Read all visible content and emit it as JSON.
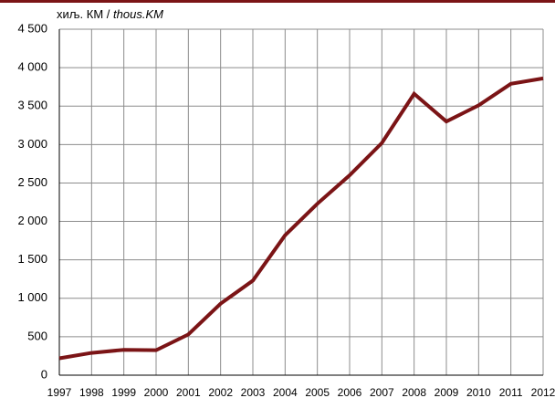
{
  "chart_data": {
    "type": "line",
    "ylabel": [
      "хиљ. КМ /",
      "thous.KM"
    ],
    "x": [
      1997,
      1998,
      1999,
      2000,
      2001,
      2002,
      2003,
      2004,
      2005,
      2006,
      2007,
      2008,
      2009,
      2010,
      2011,
      2012
    ],
    "xlim": [
      1997,
      2012
    ],
    "xticks": [
      1997,
      1998,
      1999,
      2000,
      2001,
      2002,
      2003,
      2004,
      2005,
      2006,
      2007,
      2008,
      2009,
      2010,
      2011,
      2012
    ],
    "series": [
      {
        "color": "#7b1416",
        "values": [
          220,
          290,
          330,
          325,
          530,
          930,
          1230,
          1820,
          2230,
          2600,
          3020,
          3660,
          3300,
          3510,
          3790,
          3860
        ]
      }
    ],
    "ylim": [
      0,
      4500
    ],
    "yticks": [
      0,
      500,
      {
        "value": 1000,
        "label": "1 000"
      },
      {
        "value": 1500,
        "label": "1 500"
      },
      {
        "value": 2000,
        "label": "2 000"
      },
      {
        "value": 2500,
        "label": "2 500"
      },
      {
        "value": 3000,
        "label": "3 000"
      },
      {
        "value": 3500,
        "label": "3 500"
      },
      {
        "value": 4000,
        "label": "4 000"
      },
      {
        "value": 4500,
        "label": "4 500"
      }
    ],
    "grid": true
  }
}
